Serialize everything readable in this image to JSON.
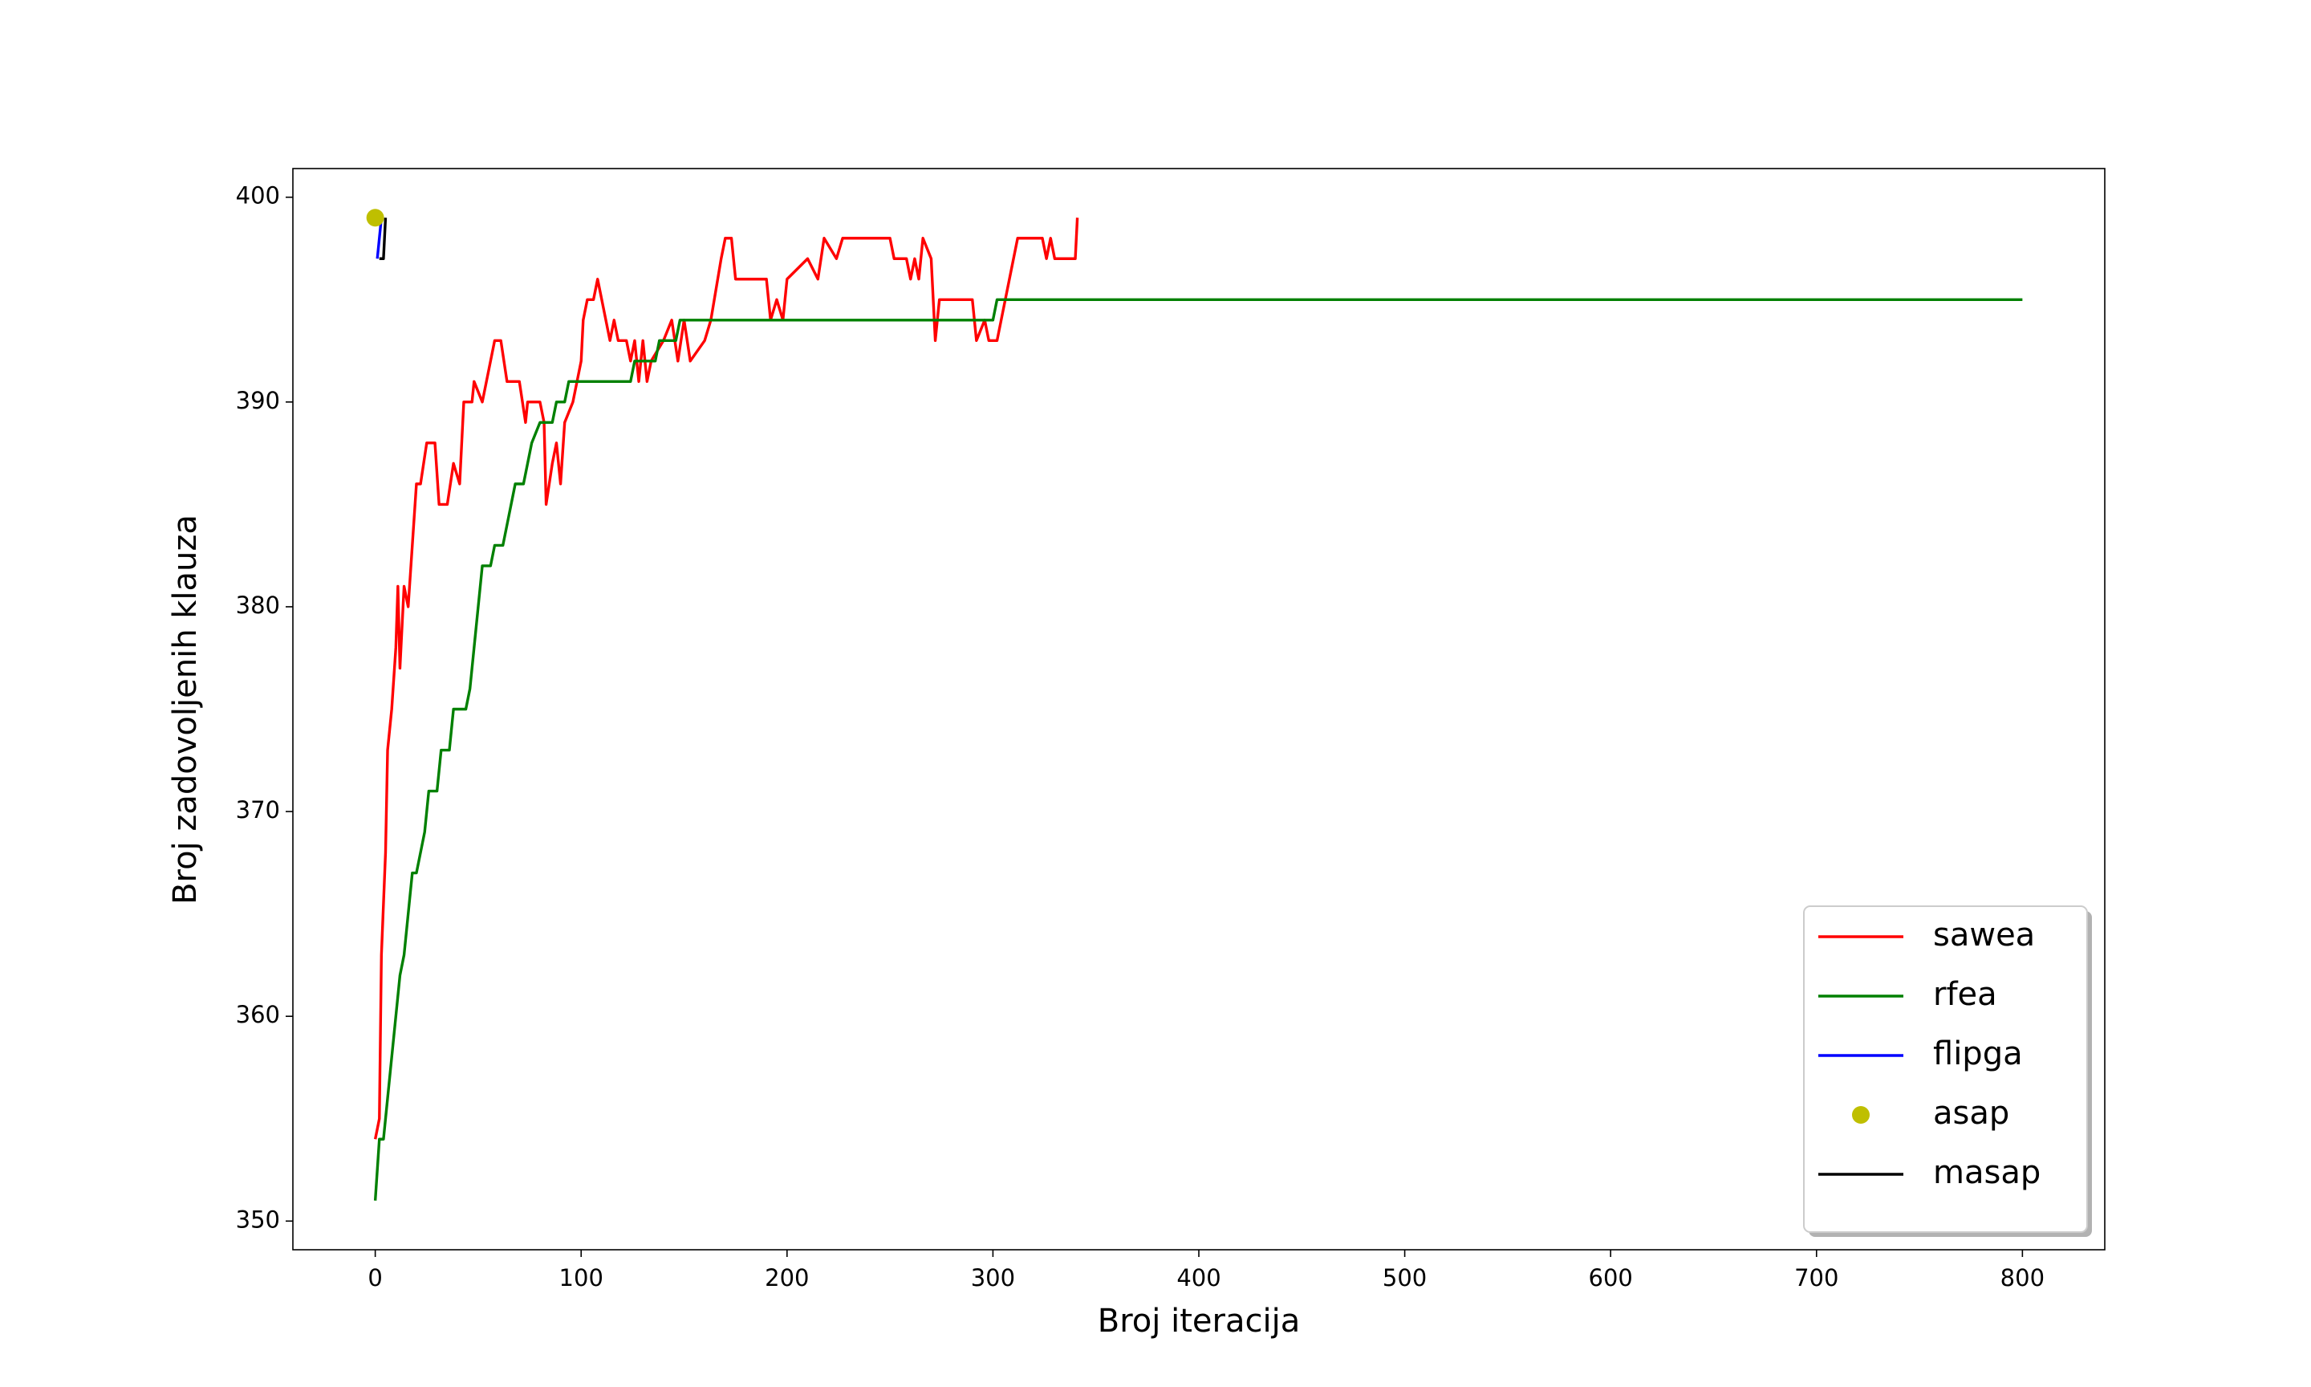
{
  "chart_data": {
    "type": "line",
    "xlabel": "Broj iteracija",
    "ylabel": "Broj zadovoljenih klauza",
    "xlim": [
      -40,
      840
    ],
    "ylim": [
      348.6,
      401.4
    ],
    "xticks": [
      0,
      100,
      200,
      300,
      400,
      500,
      600,
      700,
      800
    ],
    "yticks": [
      350,
      360,
      370,
      380,
      390,
      400
    ],
    "grid": false,
    "legend": "lower right",
    "series": [
      {
        "name": "sawea",
        "color": "#ff0000",
        "x": [
          0,
          2,
          3,
          5,
          6,
          8,
          10,
          11,
          12,
          14,
          16,
          18,
          20,
          22,
          25,
          29,
          31,
          35,
          38,
          41,
          43,
          47,
          48,
          52,
          54,
          56,
          58,
          61,
          64,
          70,
          73,
          74,
          80,
          82,
          83,
          86,
          88,
          90,
          92,
          96,
          100,
          101,
          103,
          106,
          108,
          110,
          114,
          116,
          118,
          122,
          124,
          126,
          128,
          130,
          132,
          134,
          140,
          144,
          147,
          150,
          153,
          160,
          163,
          168,
          170,
          173,
          175,
          190,
          192,
          195,
          198,
          200,
          210,
          215,
          218,
          224,
          227,
          250,
          252,
          258,
          260,
          262,
          264,
          266,
          270,
          272,
          274,
          290,
          292,
          296,
          298,
          302,
          304,
          308,
          310,
          312,
          324,
          326,
          328,
          330,
          340,
          341
        ],
        "values": [
          354,
          355,
          363,
          368,
          373,
          375,
          378,
          381,
          377,
          381,
          380,
          383,
          386,
          386,
          388,
          388,
          385,
          385,
          387,
          386,
          390,
          390,
          391,
          390,
          391,
          392,
          393,
          393,
          391,
          391,
          389,
          390,
          390,
          389,
          385,
          387,
          388,
          386,
          389,
          390,
          392,
          394,
          395,
          395,
          396,
          395,
          393,
          394,
          393,
          393,
          392,
          393,
          391,
          393,
          391,
          392,
          393,
          394,
          392,
          394,
          392,
          393,
          394,
          397,
          398,
          398,
          396,
          396,
          394,
          395,
          394,
          396,
          397,
          396,
          398,
          397,
          398,
          398,
          397,
          397,
          396,
          397,
          396,
          398,
          397,
          393,
          395,
          395,
          393,
          394,
          393,
          393,
          394,
          396,
          397,
          398,
          398,
          397,
          398,
          397,
          397,
          399
        ]
      },
      {
        "name": "rfea",
        "color": "#008000",
        "x": [
          0,
          2,
          4,
          6,
          8,
          10,
          12,
          14,
          16,
          18,
          20,
          22,
          24,
          26,
          30,
          32,
          36,
          38,
          44,
          46,
          48,
          50,
          52,
          56,
          58,
          62,
          64,
          66,
          68,
          72,
          74,
          76,
          80,
          86,
          88,
          92,
          94,
          124,
          126,
          136,
          138,
          146,
          148,
          300,
          302,
          800
        ],
        "values": [
          351,
          354,
          354,
          356,
          358,
          360,
          362,
          363,
          365,
          367,
          367,
          368,
          369,
          371,
          371,
          373,
          373,
          375,
          375,
          376,
          378,
          380,
          382,
          382,
          383,
          383,
          384,
          385,
          386,
          386,
          387,
          388,
          389,
          389,
          390,
          390,
          391,
          391,
          392,
          392,
          393,
          393,
          394,
          394,
          395,
          395
        ]
      },
      {
        "name": "flipga",
        "color": "#0000ff",
        "x": [
          1,
          3
        ],
        "values": [
          397,
          399
        ]
      },
      {
        "name": "asap",
        "color": "#bfbf00",
        "marker": "o",
        "x": [
          0
        ],
        "values": [
          399
        ]
      },
      {
        "name": "masap",
        "color": "#000000",
        "x": [
          2,
          4,
          5
        ],
        "values": [
          397,
          397,
          399
        ]
      }
    ]
  }
}
